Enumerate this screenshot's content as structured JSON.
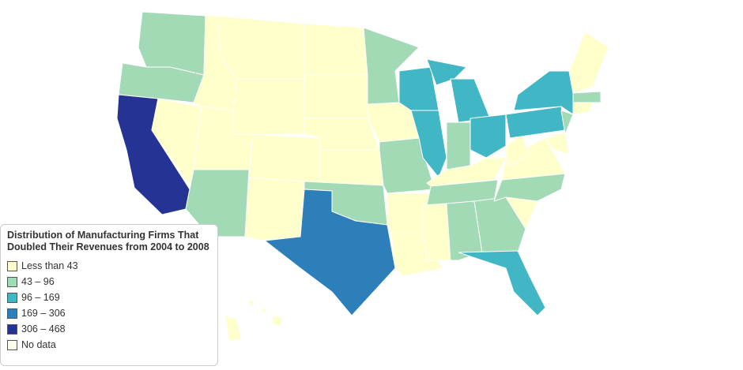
{
  "legend": {
    "title": "Distribution of Manufacturing Firms That Doubled Their Revenues from 2004 to 2008",
    "items": [
      {
        "label": "Less than 43",
        "color": "#ffffcc"
      },
      {
        "label": "43 – 96",
        "color": "#a1dab4"
      },
      {
        "label": "96 – 169",
        "color": "#41b6c4"
      },
      {
        "label": "169 – 306",
        "color": "#2c7fb8"
      },
      {
        "label": "306 – 468",
        "color": "#253494"
      },
      {
        "label": "No data",
        "color": "#fffff0"
      }
    ]
  }
}
